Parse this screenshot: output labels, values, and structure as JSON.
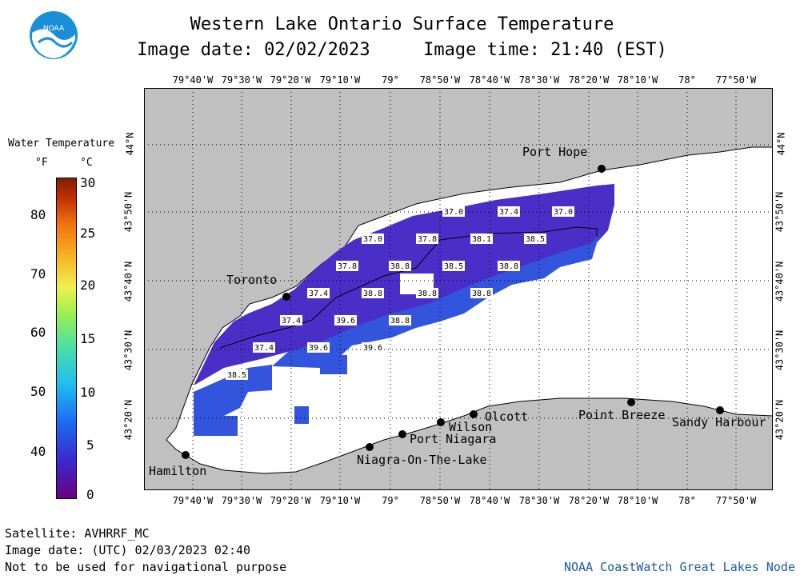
{
  "header": {
    "title": "Western Lake Ontario Surface Temperature",
    "date_label": "Image date: 02/02/2023",
    "time_label": "Image time: 21:40 (EST)"
  },
  "logo": {
    "text": "NOAA"
  },
  "longitude_ticks": [
    "79°40'W",
    "79°30'W",
    "79°20'W",
    "79°10'W",
    "79°",
    "78°50'W",
    "78°40'W",
    "78°30'W",
    "78°20'W",
    "78°10'W",
    "78°",
    "77°50'W"
  ],
  "latitude_ticks": [
    "44°N",
    "43°50'N",
    "43°40'N",
    "43°30'N",
    "43°20'N"
  ],
  "legend": {
    "title": "Water Temperature",
    "unit_f": "°F",
    "unit_c": "°C",
    "f_ticks": [
      "80",
      "70",
      "60",
      "50",
      "40"
    ],
    "c_ticks": [
      "30",
      "25",
      "20",
      "15",
      "10",
      "5",
      "0"
    ],
    "colors": [
      "#6a0080",
      "#3a2ad0",
      "#1a6ef0",
      "#20c0f0",
      "#50e0a0",
      "#a0f050",
      "#f0f050",
      "#f8b020",
      "#f07010",
      "#c03000",
      "#802000"
    ]
  },
  "places": [
    {
      "name": "Port Hope"
    },
    {
      "name": "Toronto"
    },
    {
      "name": "Hamilton"
    },
    {
      "name": "Wilson"
    },
    {
      "name": "Olcott"
    },
    {
      "name": "Port Niagara"
    },
    {
      "name": "Niagra-On-The-Lake"
    },
    {
      "name": "Point Breeze"
    },
    {
      "name": "Sandy Harbour"
    }
  ],
  "temperature_labels": [
    "37.0",
    "37.4",
    "37.0",
    "37.0",
    "37.8",
    "38.1",
    "38.5",
    "37.8",
    "38.8",
    "38.5",
    "38.8",
    "37.4",
    "38.8",
    "38.8",
    "38.8",
    "37.4",
    "39.6",
    "38.8",
    "37.4",
    "39.6",
    "39.6",
    "38.5"
  ],
  "footer": {
    "satellite": "Satellite: AVHRRF_MC",
    "utc_date": "Image date: (UTC) 02/03/2023  02:40",
    "disclaimer": "Not to be used for navigational purpose",
    "credit": "NOAA CoastWatch Great Lakes Node"
  },
  "colors": {
    "land": "#c0c0c0",
    "water_nodata": "#ffffff",
    "water_warm": "#3355dd",
    "water_cold": "#4a2ec8",
    "credit": "#1e5aa8",
    "logo_blue": "#1a8fd8"
  }
}
